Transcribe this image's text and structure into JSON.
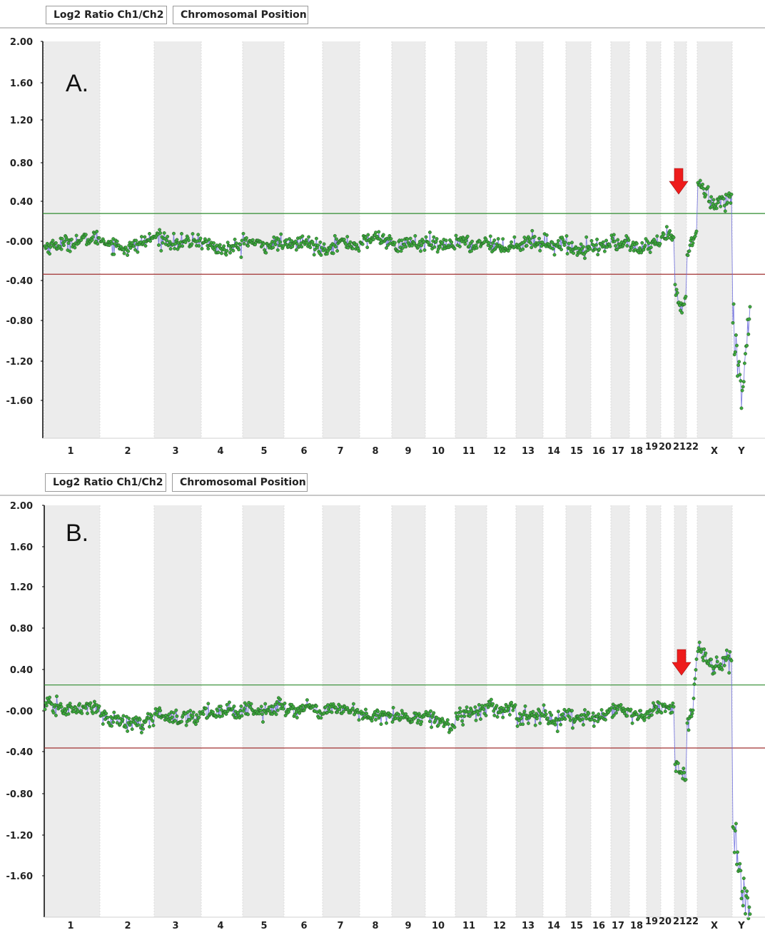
{
  "tabs": {
    "log2_ratio": "Log2 Ratio Ch1/Ch2",
    "chromosomal_position": "Chromosomal Position"
  },
  "colors": {
    "upper_threshold": "#2e8b2e",
    "lower_threshold": "#a03030",
    "points": "#3ea83e",
    "trace": "#6b6bdc",
    "band": "#ececec",
    "arrow": "#ee1c1c"
  },
  "chart_data": [
    {
      "type": "scatter",
      "panel_label": "A.",
      "yticks": [
        "2.00",
        "1.60",
        "1.20",
        "0.80",
        "0.40",
        "-0.00",
        "-0.40",
        "-0.80",
        "-1.20",
        "-1.60"
      ],
      "ylim": [
        -1.92,
        2.0
      ],
      "thresholds": {
        "upper": 0.3,
        "lower": -0.3
      },
      "categories": [
        "1",
        "2",
        "3",
        "4",
        "5",
        "6",
        "7",
        "8",
        "9",
        "10",
        "11",
        "12",
        "13",
        "14",
        "15",
        "16",
        "17",
        "18",
        "19",
        "20",
        "21",
        "22",
        "X",
        "Y"
      ],
      "series": [
        {
          "values_by_chromosome": {
            "1": [
              -0.03,
              0.02,
              0.06
            ],
            "2": [
              0.04,
              -0.05,
              0.06
            ],
            "3": [
              0.08,
              0.0,
              0.04
            ],
            "4": [
              0.02,
              -0.06,
              -0.02
            ],
            "5": [
              0.04,
              -0.02,
              0.02
            ],
            "6": [
              -0.03,
              0.02,
              -0.04
            ],
            "7": [
              -0.05,
              0.02,
              -0.02
            ],
            "8": [
              0.0,
              0.07,
              0.03
            ],
            "9": [
              -0.05,
              0.02,
              -0.02
            ],
            "10": [
              0.02,
              -0.03,
              0.0
            ],
            "11": [
              0.05,
              -0.02,
              0.03
            ],
            "12": [
              0.02,
              -0.04,
              0.01
            ],
            "13": [
              -0.03,
              0.04,
              0.0
            ],
            "14": [
              0.03,
              -0.02,
              0.02
            ],
            "15": [
              -0.03,
              -0.06,
              -0.02
            ],
            "16": [
              0.0,
              -0.05,
              0.02
            ],
            "17": [
              0.04,
              -0.02,
              0.04
            ],
            "18": [
              -0.02,
              -0.06,
              -0.03
            ],
            "19": [
              -0.05,
              0.0,
              -0.03
            ],
            "20": [
              0.06,
              0.1,
              0.05
            ],
            "21": [
              -0.45,
              -0.65,
              -0.55
            ],
            "22": [
              -0.15,
              0.05,
              0.1
            ],
            "X": [
              0.6,
              0.4,
              0.45
            ],
            "Y": [
              -0.8,
              -1.4,
              -0.7
            ]
          }
        }
      ]
    },
    {
      "type": "scatter",
      "panel_label": "B.",
      "yticks": [
        "2.00",
        "1.60",
        "1.20",
        "0.80",
        "0.40",
        "-0.00",
        "-0.40",
        "-0.80",
        "-1.20",
        "-1.60"
      ],
      "ylim": [
        -1.92,
        2.0
      ],
      "thresholds": {
        "upper": 0.29,
        "lower": -0.31
      },
      "categories": [
        "1",
        "2",
        "3",
        "4",
        "5",
        "6",
        "7",
        "8",
        "9",
        "10",
        "11",
        "12",
        "13",
        "14",
        "15",
        "16",
        "17",
        "18",
        "19",
        "20",
        "21",
        "22",
        "X",
        "Y"
      ],
      "series": [
        {
          "values_by_chromosome": {
            "1": [
              0.1,
              0.05,
              0.08
            ],
            "2": [
              0.0,
              -0.08,
              -0.05
            ],
            "3": [
              0.04,
              -0.04,
              0.0
            ],
            "4": [
              0.02,
              0.05,
              0.03
            ],
            "5": [
              0.08,
              0.02,
              0.1
            ],
            "6": [
              0.05,
              0.07,
              0.04
            ],
            "7": [
              0.03,
              0.08,
              0.02
            ],
            "8": [
              0.0,
              -0.02,
              0.02
            ],
            "9": [
              0.01,
              -0.03,
              0.0
            ],
            "10": [
              0.0,
              -0.05,
              -0.12
            ],
            "11": [
              0.0,
              0.03,
              0.05
            ],
            "12": [
              0.1,
              0.05,
              0.08
            ],
            "13": [
              -0.05,
              -0.02,
              0.02
            ],
            "14": [
              0.02,
              -0.08,
              0.0
            ],
            "15": [
              0.0,
              -0.05,
              -0.02
            ],
            "16": [
              -0.02,
              0.0,
              0.03
            ],
            "17": [
              0.05,
              0.08,
              0.02
            ],
            "18": [
              0.04,
              -0.02,
              0.0
            ],
            "19": [
              0.04,
              0.08,
              0.06
            ],
            "20": [
              0.06,
              0.08,
              0.05
            ],
            "21": [
              -0.45,
              -0.55,
              -0.6
            ],
            "22": [
              -0.05,
              0.0,
              0.5
            ],
            "X": [
              0.62,
              0.45,
              0.55
            ],
            "Y": [
              -1.1,
              -1.6,
              -1.85
            ]
          }
        }
      ]
    }
  ]
}
